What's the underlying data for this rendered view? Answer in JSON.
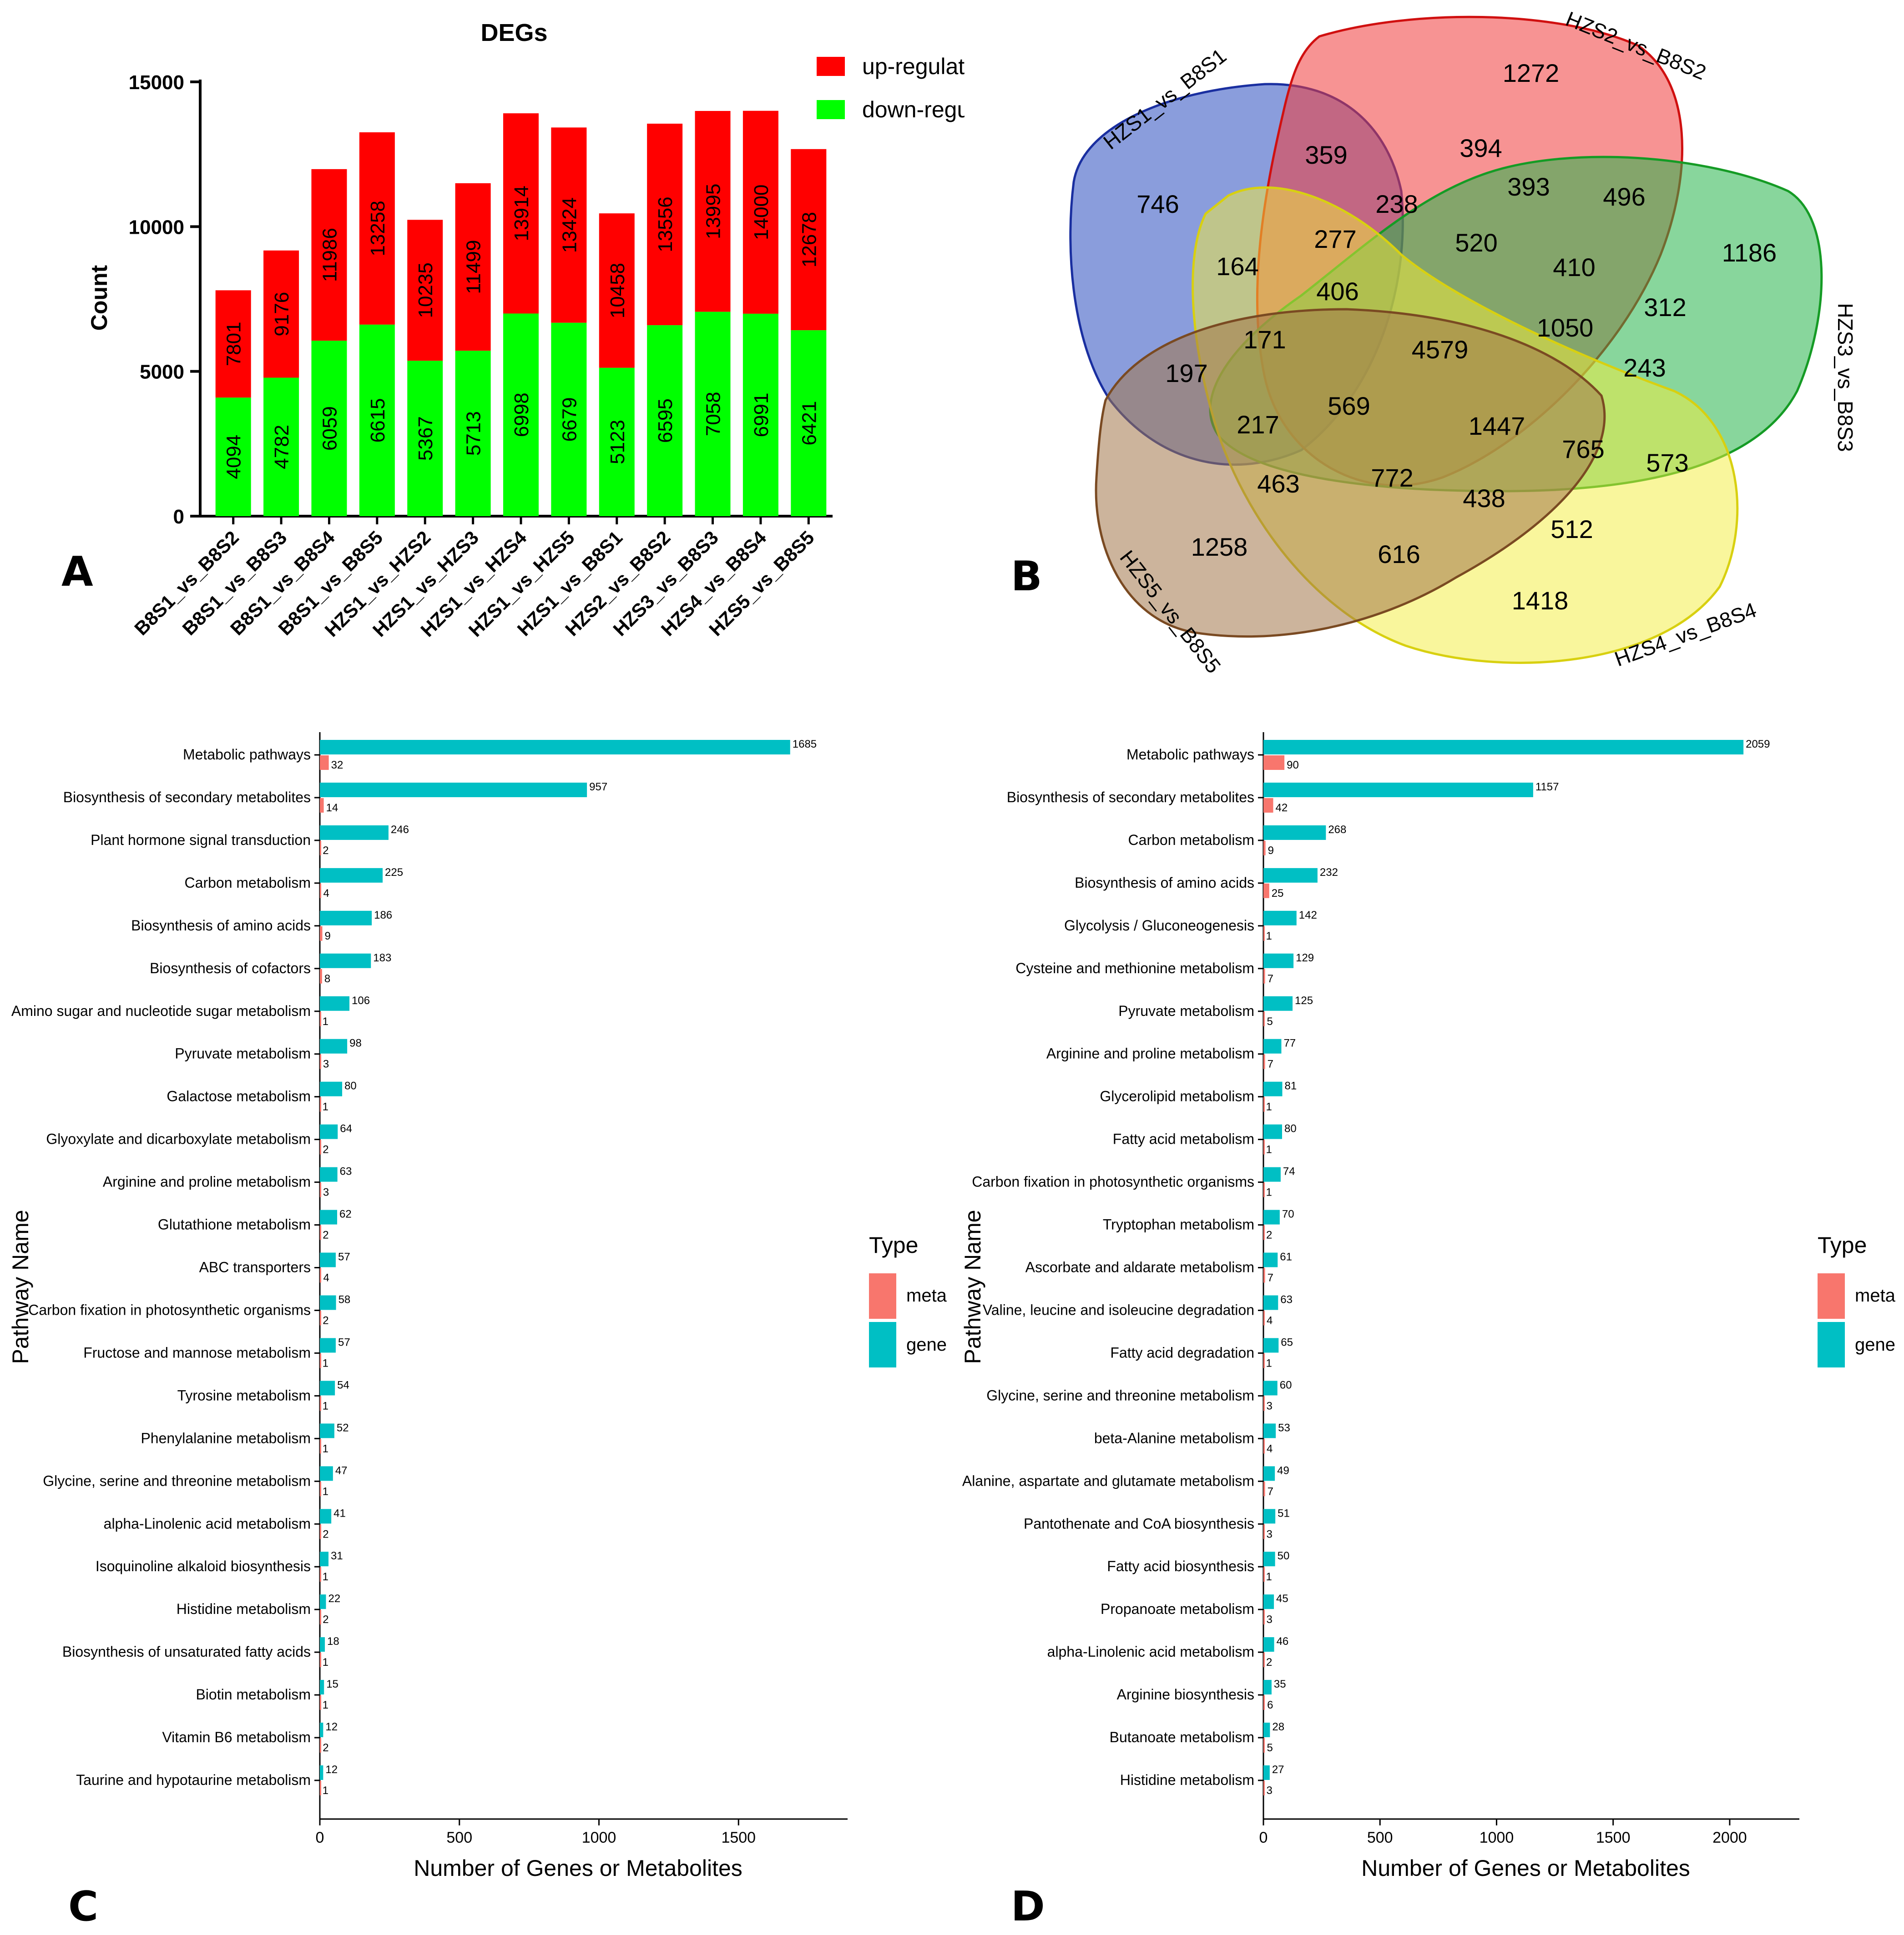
{
  "panels": {
    "a": "A",
    "b": "B",
    "c": "C",
    "d": "D"
  },
  "colors": {
    "up": "#ff0000",
    "down": "#00ff00",
    "meta": "#f8766d",
    "gene": "#00bfc4",
    "axis": "#000000"
  },
  "chart_data": [
    {
      "type": "bar",
      "stacked": true,
      "title": "DEGs",
      "ylabel": "Count",
      "xlabel": "",
      "ylim": [
        0,
        15000
      ],
      "yticks": [
        0,
        5000,
        10000,
        15000
      ],
      "legend": [
        "up-regulated",
        "down-regulated"
      ],
      "legend_position": "top-right",
      "categories": [
        "B8S1_vs_B8S2",
        "B8S1_vs_B8S3",
        "B8S1_vs_B8S4",
        "B8S1_vs_B8S5",
        "HZS1_vs_HZS2",
        "HZS1_vs_HZS3",
        "HZS1_vs_HZS4",
        "HZS1_vs_HZS5",
        "HZS1_vs_B8S1",
        "HZS2_vs_B8S2",
        "HZS3_vs_B8S3",
        "HZS4_vs_B8S4",
        "HZS5_vs_B8S5"
      ],
      "totals": [
        7801,
        9176,
        11986,
        13258,
        10235,
        11499,
        13914,
        13424,
        10458,
        13556,
        13995,
        14000,
        12678
      ],
      "series": [
        {
          "name": "down-regulated",
          "values": [
            4094,
            4782,
            6059,
            6615,
            5367,
            5713,
            6998,
            6679,
            5123,
            6595,
            7058,
            6991,
            6421
          ]
        },
        {
          "name": "up-regulated",
          "values": [
            3707,
            4394,
            5927,
            6643,
            4868,
            5786,
            6916,
            6745,
            5335,
            6961,
            6937,
            7009,
            6257
          ]
        }
      ]
    },
    {
      "type": "venn",
      "sets": [
        "HZS1_vs_B8S1",
        "HZS2_vs_B8S2",
        "HZS3_vs_B8S3",
        "HZS4_vs_B8S4",
        "HZS5_vs_B8S5"
      ],
      "region_values": [
        "746",
        "1272",
        "359",
        "394",
        "238",
        "393",
        "496",
        "1186",
        "277",
        "520",
        "410",
        "164",
        "406",
        "312",
        "171",
        "4579",
        "1050",
        "197",
        "243",
        "569",
        "217",
        "1447",
        "765",
        "573",
        "463",
        "772",
        "438",
        "512",
        "1258",
        "616",
        "1418"
      ]
    },
    {
      "type": "bar",
      "orientation": "horizontal",
      "xlabel": "Number of Genes or Metabolites",
      "ylabel": "Pathway Name",
      "xlim": [
        0,
        1850
      ],
      "xticks": [
        0,
        500,
        1000,
        1500
      ],
      "legend_title": "Type",
      "legend": [
        "meta",
        "gene"
      ],
      "legend_position": "right",
      "categories": [
        "Metabolic pathways",
        "Biosynthesis of secondary metabolites",
        "Plant hormone signal transduction",
        "Carbon metabolism",
        "Biosynthesis of amino acids",
        "Biosynthesis of cofactors",
        "Amino sugar and nucleotide sugar metabolism",
        "Pyruvate metabolism",
        "Galactose metabolism",
        "Glyoxylate and dicarboxylate metabolism",
        "Arginine and proline metabolism",
        "Glutathione metabolism",
        "ABC transporters",
        "Carbon fixation in photosynthetic organisms",
        "Fructose and mannose metabolism",
        "Tyrosine metabolism",
        "Phenylalanine metabolism",
        "Glycine, serine and threonine metabolism",
        "alpha-Linolenic acid metabolism",
        "Isoquinoline alkaloid biosynthesis",
        "Histidine metabolism",
        "Biosynthesis of unsaturated fatty acids",
        "Biotin metabolism",
        "Vitamin B6 metabolism",
        "Taurine and hypotaurine metabolism"
      ],
      "series": [
        {
          "name": "gene",
          "values": [
            1685,
            957,
            246,
            225,
            186,
            183,
            106,
            98,
            80,
            64,
            63,
            62,
            57,
            58,
            57,
            54,
            52,
            47,
            41,
            31,
            22,
            18,
            15,
            12,
            12
          ]
        },
        {
          "name": "meta",
          "values": [
            32,
            14,
            2,
            4,
            9,
            8,
            1,
            3,
            1,
            2,
            3,
            2,
            4,
            2,
            1,
            1,
            1,
            1,
            2,
            1,
            2,
            1,
            1,
            2,
            1
          ]
        }
      ]
    },
    {
      "type": "bar",
      "orientation": "horizontal",
      "xlabel": "Number of Genes or Metabolites",
      "ylabel": "Pathway Name",
      "xlim": [
        0,
        2250
      ],
      "xticks": [
        0,
        500,
        1000,
        1500,
        2000
      ],
      "legend_title": "Type",
      "legend": [
        "meta",
        "gene"
      ],
      "legend_position": "right",
      "categories": [
        "Metabolic pathways",
        "Biosynthesis of secondary metabolites",
        "Carbon metabolism",
        "Biosynthesis of amino acids",
        "Glycolysis / Gluconeogenesis",
        "Cysteine and methionine metabolism",
        "Pyruvate metabolism",
        "Arginine and proline metabolism",
        "Glycerolipid metabolism",
        "Fatty acid metabolism",
        "Carbon fixation in photosynthetic organisms",
        "Tryptophan metabolism",
        "Ascorbate and aldarate metabolism",
        "Valine, leucine and isoleucine degradation",
        "Fatty acid degradation",
        "Glycine, serine and threonine metabolism",
        "beta-Alanine metabolism",
        "Alanine, aspartate and glutamate metabolism",
        "Pantothenate and CoA biosynthesis",
        "Fatty acid biosynthesis",
        "Propanoate metabolism",
        "alpha-Linolenic acid metabolism",
        "Arginine biosynthesis",
        "Butanoate metabolism",
        "Histidine metabolism"
      ],
      "series": [
        {
          "name": "gene",
          "values": [
            2059,
            1157,
            268,
            232,
            142,
            129,
            125,
            77,
            81,
            80,
            74,
            70,
            61,
            63,
            65,
            60,
            53,
            49,
            51,
            50,
            45,
            46,
            35,
            28,
            27
          ]
        },
        {
          "name": "meta",
          "values": [
            90,
            42,
            9,
            25,
            1,
            7,
            5,
            7,
            1,
            1,
            1,
            2,
            7,
            4,
            1,
            3,
            4,
            7,
            3,
            1,
            3,
            2,
            6,
            5,
            3
          ]
        }
      ]
    }
  ]
}
